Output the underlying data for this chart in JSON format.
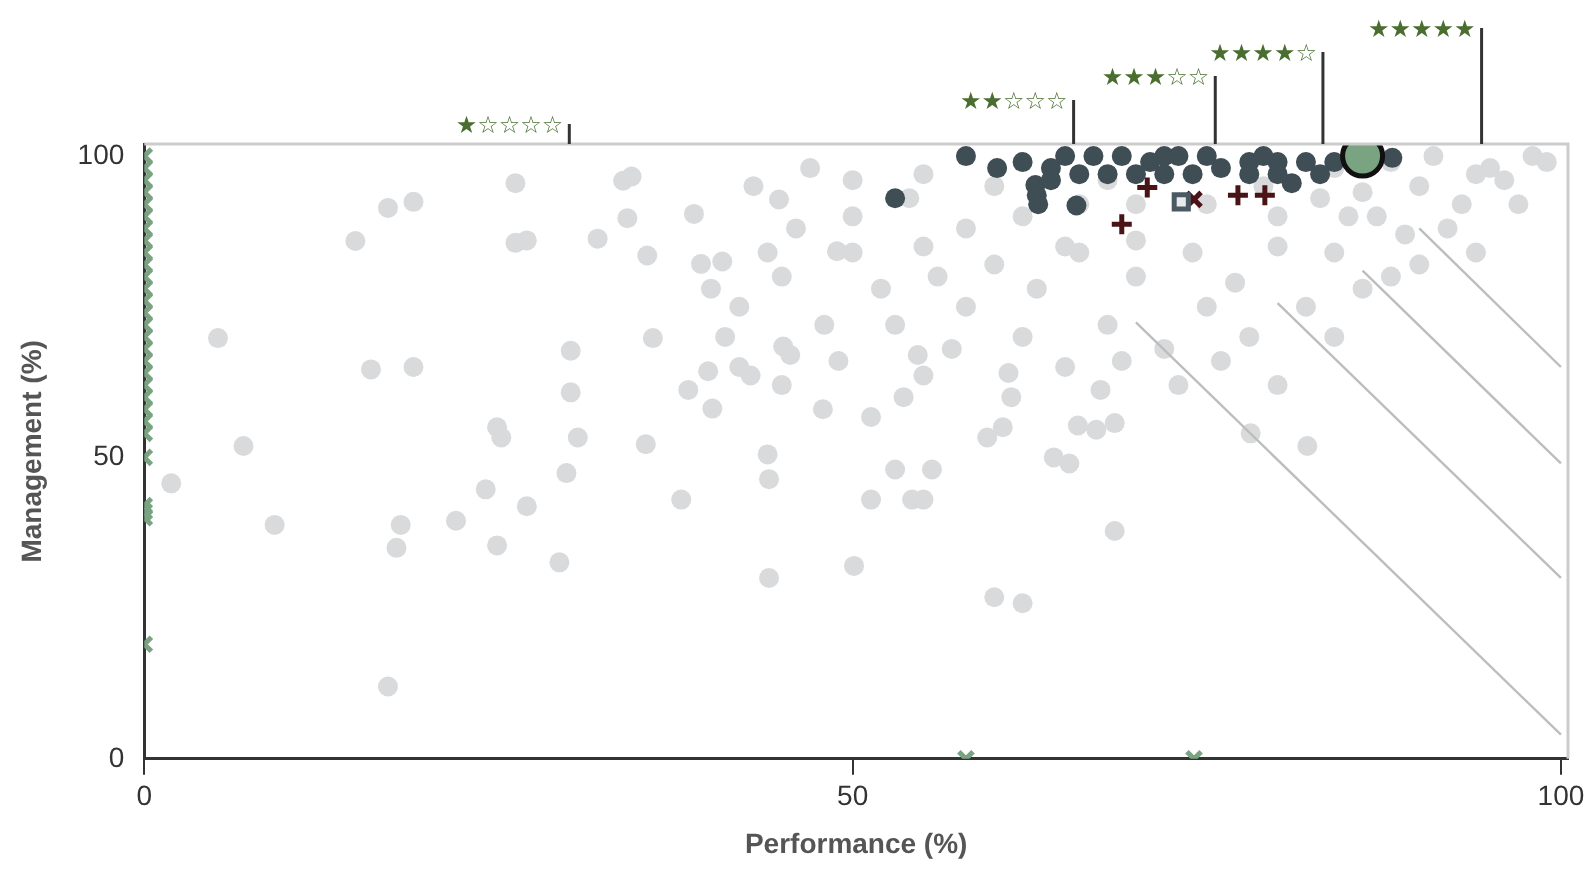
{
  "chart_data": {
    "type": "scatter",
    "xlabel": "Performance (%)",
    "ylabel": "Management (%)",
    "xlim": [
      0,
      100.5
    ],
    "ylim": [
      0,
      102
    ],
    "xticks": [
      0,
      50,
      100
    ],
    "yticks": [
      0,
      50,
      100
    ],
    "grid": false,
    "legend": false,
    "marker": "circle",
    "ref_lines": [
      {
        "axis": "x",
        "value": 30,
        "label": "★☆☆☆☆"
      },
      {
        "axis": "x",
        "value": 65.6,
        "label": "★★☆☆☆"
      },
      {
        "axis": "x",
        "value": 75.6,
        "label": "★★★☆☆"
      },
      {
        "axis": "x",
        "value": 83.2,
        "label": "★★★★☆"
      },
      {
        "axis": "x",
        "value": 94.4,
        "label": "★★★★★"
      }
    ],
    "series": [
      {
        "color": "#d9dadb",
        "x": [
          1.9,
          5.2,
          7,
          9.2,
          14.9,
          16,
          17.2,
          19,
          19,
          17.2,
          17.8,
          18.1,
          22,
          24.1,
          24.9,
          24.9,
          25.2,
          26.2,
          27,
          29.3,
          26.2,
          27,
          29.8,
          30.1,
          30.1,
          30.6,
          32,
          33.8,
          34.1,
          34.4,
          35.4,
          35.5,
          35.9,
          37.9,
          38.4,
          38.8,
          39.3,
          39.8,
          40.1,
          40.8,
          42,
          42.8,
          44.1,
          44,
          44.8,
          45.1,
          44.1,
          45.6,
          47.9,
          48.9,
          50.1,
          51.3,
          51.3,
          53,
          54.2,
          55,
          55.6,
          55,
          53.6,
          54.6,
          60,
          62,
          60.6,
          59.5,
          61.2,
          64.2,
          65.3,
          65.9,
          67.2,
          68.5,
          67.5,
          68.5,
          78.1,
          82.1,
          50,
          55,
          45,
          60,
          65,
          70,
          75,
          80,
          85,
          90,
          95,
          98,
          92,
          88,
          82,
          78,
          72,
          68,
          62,
          58,
          52,
          48,
          42,
          46,
          54,
          58,
          63,
          66,
          70,
          74,
          77,
          80,
          84,
          86,
          89,
          93,
          96,
          99,
          40,
          44,
          50,
          56,
          60,
          68,
          84,
          88,
          91,
          94,
          97,
          55,
          50,
          47,
          43,
          57,
          61,
          65,
          69,
          73,
          76,
          80,
          84,
          86,
          90,
          94,
          53,
          49,
          45,
          41,
          75,
          79,
          83,
          87,
          62,
          66,
          70
        ],
        "values": [
          45.7,
          69.8,
          51.9,
          38.8,
          85.9,
          64.6,
          91.4,
          92.4,
          65,
          12,
          35,
          38.8,
          39.5,
          44.7,
          35.4,
          55,
          53.3,
          85.6,
          41.9,
          32.6,
          95.5,
          86,
          47.4,
          60.8,
          67.7,
          53.3,
          86.3,
          95.9,
          89.7,
          96.6,
          52.2,
          83.5,
          69.8,
          43,
          61.2,
          90.4,
          82.1,
          64.3,
          58.1,
          82.5,
          65,
          63.6,
          46.4,
          50.5,
          92.8,
          68.4,
          30,
          67,
          58,
          84.2,
          32,
          43,
          56.7,
          48,
          43,
          43,
          48,
          63.6,
          60,
          67,
          26.8,
          25.8,
          55,
          53.3,
          60,
          50,
          49,
          55.3,
          54.6,
          55.7,
          61.2,
          37.8,
          54,
          51.9,
          90,
          85,
          80,
          95,
          85,
          80,
          75,
          85,
          90,
          95,
          98,
          100,
          88,
          80,
          75,
          70,
          68,
          72,
          70,
          75,
          78,
          72,
          75,
          88,
          93,
          88,
          78,
          92,
          86,
          84,
          79,
          90,
          84,
          94,
          87,
          92,
          96,
          99,
          78,
          84,
          84,
          80,
          82,
          96,
          98,
          99,
          100,
          97,
          92,
          97,
          96,
          98,
          95,
          68,
          64,
          65,
          66,
          62,
          66,
          62,
          70,
          78,
          82,
          84,
          72,
          66,
          62,
          70,
          92,
          95,
          93,
          90,
          90,
          84,
          92
        ]
      },
      {
        "color": "#3f4d54",
        "x": [
          58,
          53,
          60.2,
          62.9,
          63.1,
          65.8,
          81,
          88.1,
          62,
          64,
          72,
          78,
          80,
          82,
          84,
          64,
          66,
          68,
          70,
          72,
          74,
          76,
          78,
          80,
          63,
          65,
          67,
          69,
          73,
          71,
          75,
          79,
          83
        ],
        "values": [
          100,
          93,
          98,
          95.2,
          92,
          91.8,
          95.5,
          99.7,
          99,
          98,
          100,
          99,
          99,
          99,
          99,
          96,
          97,
          97,
          97,
          97,
          97,
          98,
          97,
          97,
          93.5,
          100,
          100,
          100,
          100,
          99,
          100,
          100,
          97
        ]
      },
      {
        "color": "#7aa381",
        "marker": "x",
        "x": [
          0,
          0,
          0,
          0,
          0,
          0,
          0,
          0,
          0,
          0,
          0,
          0,
          0,
          0,
          0,
          0,
          0,
          0,
          0,
          0,
          0,
          0,
          0,
          0,
          0,
          0,
          0,
          0,
          0,
          58,
          74.1
        ],
        "values": [
          100,
          98,
          96,
          94,
          92,
          90,
          88,
          86,
          84,
          82,
          80,
          78,
          76,
          74,
          72,
          70,
          68,
          66,
          64,
          62,
          60,
          58,
          56,
          54,
          50,
          42,
          41,
          40,
          19,
          0,
          0
        ]
      },
      {
        "color": "#4a1416",
        "marker": "cross",
        "x": [
          69,
          70.8,
          79.1
        ],
        "values": [
          88.7,
          94.8,
          93.5
        ]
      },
      {
        "color": "#4a1416",
        "marker": "x",
        "x": [
          74.1
        ],
        "values": [
          92.8
        ]
      },
      {
        "color": "#4a1416",
        "marker": "cross",
        "x": [
          77.2
        ],
        "values": [
          93.5
        ]
      },
      {
        "color": "#4a5a62",
        "marker": "square",
        "x": [
          73.2
        ],
        "values": [
          92.4
        ]
      },
      {
        "color": "#7aa381",
        "x": [
          86
        ],
        "values": [
          100
        ]
      },
      {
        "type": "line",
        "color": "#bdbdbd",
        "marker": "none",
        "x": [
          70,
          100
        ],
        "values": [
          72.4,
          4
        ]
      },
      {
        "type": "line",
        "color": "#bdbdbd",
        "marker": "none",
        "x": [
          80,
          100
        ],
        "values": [
          75.6,
          30
        ]
      },
      {
        "type": "line",
        "color": "#bdbdbd",
        "marker": "none",
        "x": [
          86,
          100
        ],
        "values": [
          81,
          49
        ]
      },
      {
        "type": "line",
        "color": "#bdbdbd",
        "marker": "none",
        "x": [
          90,
          100
        ],
        "values": [
          88,
          65
        ]
      }
    ]
  }
}
